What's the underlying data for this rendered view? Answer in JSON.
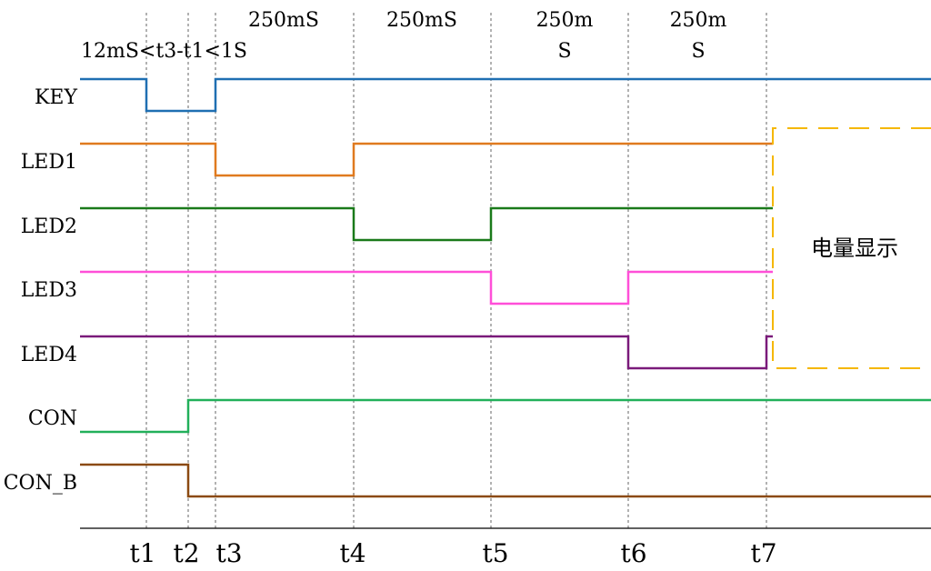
{
  "signals": [
    {
      "name": "KEY",
      "color": "#1f6fb2",
      "levels": [
        1,
        0,
        0,
        1,
        1,
        1,
        1,
        1,
        1
      ]
    },
    {
      "name": "LED1",
      "color": "#e07a1f",
      "levels": [
        1,
        1,
        1,
        0,
        1,
        1,
        1,
        1
      ]
    },
    {
      "name": "LED2",
      "color": "#1a7a1a",
      "levels": [
        1,
        1,
        1,
        1,
        0,
        1,
        1,
        1
      ]
    },
    {
      "name": "LED3",
      "color": "#ff4fd8",
      "levels": [
        1,
        1,
        1,
        1,
        1,
        0,
        1,
        1
      ]
    },
    {
      "name": "LED4",
      "color": "#7a1a7a",
      "levels": [
        1,
        1,
        1,
        1,
        1,
        1,
        0,
        1
      ]
    },
    {
      "name": "CON",
      "color": "#22b05a",
      "levels": [
        0,
        0,
        1,
        1,
        1,
        1,
        1,
        1,
        1
      ]
    },
    {
      "name": "CON_B",
      "color": "#8b4a12",
      "levels": [
        1,
        1,
        0,
        0,
        0,
        0,
        0,
        0,
        0
      ]
    }
  ],
  "time_markers": [
    "t1",
    "t2",
    "t3",
    "t4",
    "t5",
    "t6",
    "t7"
  ],
  "annotations": {
    "key_condition": "12mS<t3-t1<1S",
    "interval_1": "250mS",
    "interval_2": "250mS",
    "interval_3_line1": "250m",
    "interval_3_line2": "S",
    "interval_4_line1": "250m",
    "interval_4_line2": "S"
  },
  "region": {
    "label": "电量显示",
    "color": "#f5b700"
  }
}
